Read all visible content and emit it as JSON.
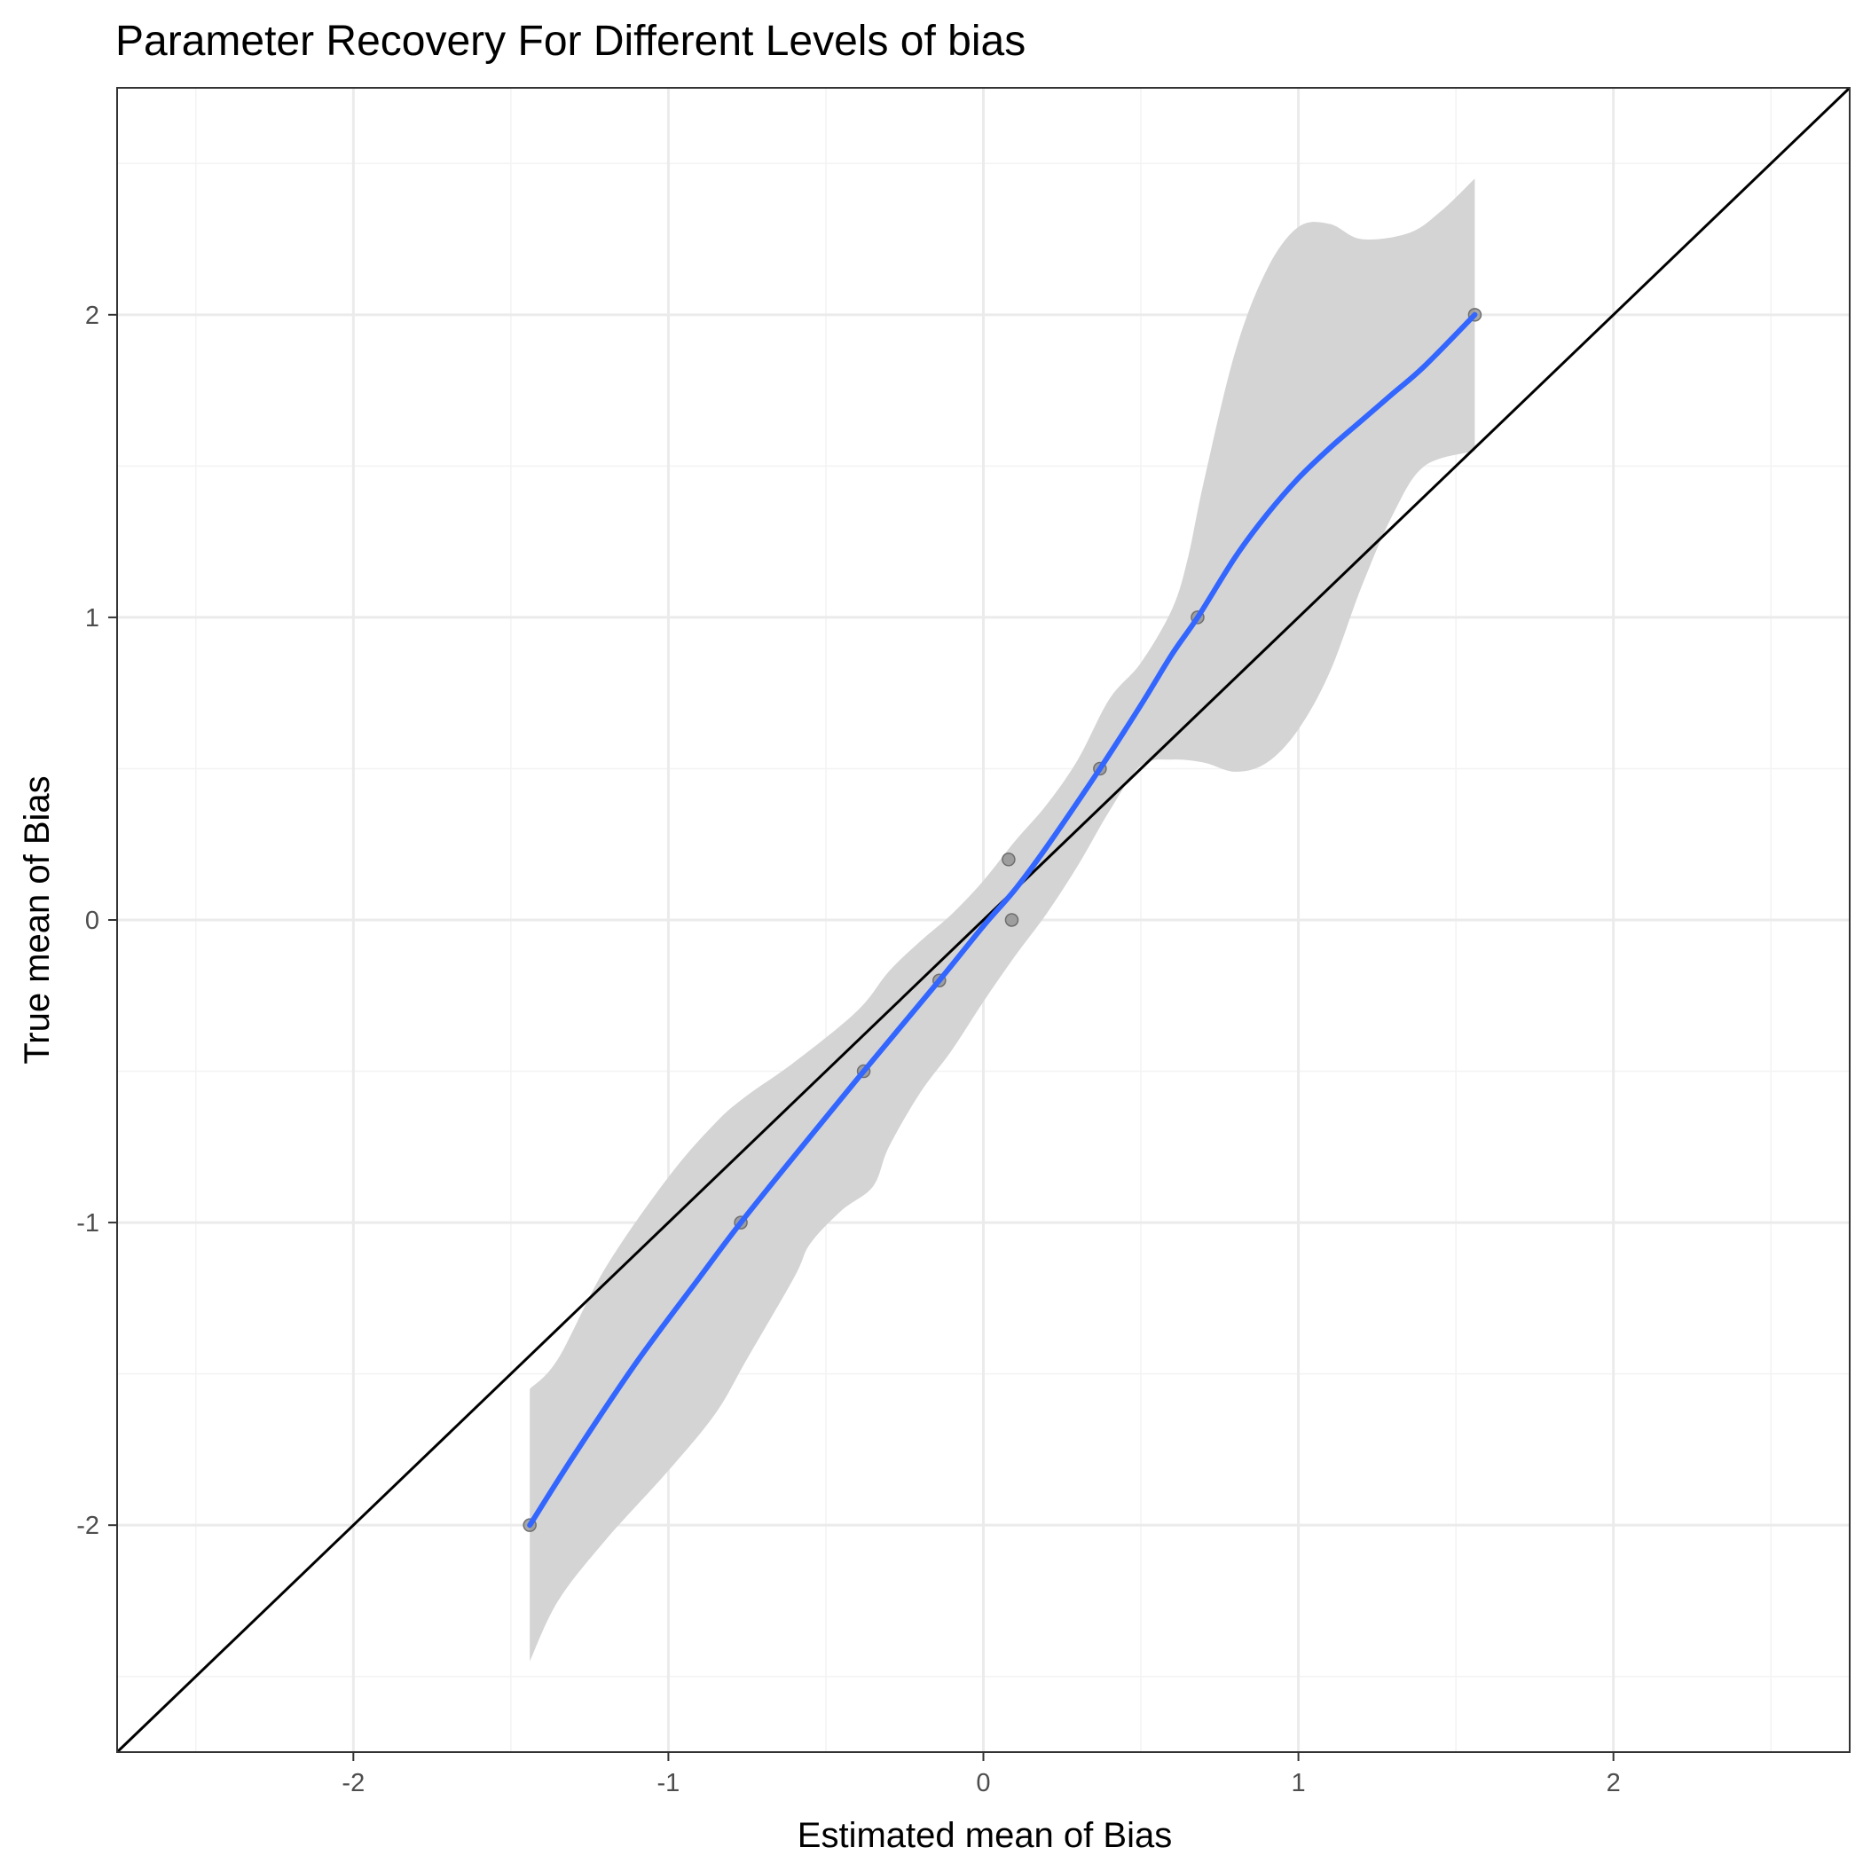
{
  "chart_data": {
    "type": "scatter",
    "title": "Parameter Recovery For Different Levels of bias",
    "xlabel": "Estimated mean of Bias",
    "ylabel": "True mean of Bias",
    "xlim": [
      -2.75,
      2.75
    ],
    "ylim": [
      -2.75,
      2.75
    ],
    "x_ticks": [
      -2,
      -1,
      0,
      1,
      2
    ],
    "x_tick_labels": [
      "-2",
      "-1",
      "0",
      "1",
      "2"
    ],
    "y_ticks": [
      -2,
      -1,
      0,
      1,
      2
    ],
    "y_tick_labels": [
      "-2",
      "-1",
      "0",
      "1",
      "2"
    ],
    "minor_ticks": [
      -2.5,
      -1.5,
      -0.5,
      0.5,
      1.5,
      2.5
    ],
    "grid": true,
    "legend": "none",
    "colors": {
      "points": "#8c8c8c",
      "smooth_line": "#3366ff",
      "ribbon": "#d4d4d4",
      "identity_line": "#000000",
      "grid_major": "#ebebeb",
      "grid_minor": "#f3f3f3",
      "panel_border": "#333333"
    },
    "points": [
      {
        "x": -1.44,
        "y": -2.0
      },
      {
        "x": -0.77,
        "y": -1.0
      },
      {
        "x": -0.38,
        "y": -0.5
      },
      {
        "x": -0.14,
        "y": -0.2
      },
      {
        "x": 0.08,
        "y": 0.2
      },
      {
        "x": 0.09,
        "y": 0.0
      },
      {
        "x": 0.37,
        "y": 0.5
      },
      {
        "x": 0.68,
        "y": 1.0
      },
      {
        "x": 1.56,
        "y": 2.0
      }
    ],
    "smooth": {
      "method": "loess",
      "line": [
        {
          "x": -1.44,
          "y": -2.0
        },
        {
          "x": -1.3,
          "y": -1.77
        },
        {
          "x": -1.1,
          "y": -1.46
        },
        {
          "x": -0.9,
          "y": -1.18
        },
        {
          "x": -0.77,
          "y": -1.0
        },
        {
          "x": -0.6,
          "y": -0.78
        },
        {
          "x": -0.38,
          "y": -0.5
        },
        {
          "x": -0.14,
          "y": -0.2
        },
        {
          "x": 0.0,
          "y": -0.02
        },
        {
          "x": 0.1,
          "y": 0.1
        },
        {
          "x": 0.2,
          "y": 0.24
        },
        {
          "x": 0.37,
          "y": 0.5
        },
        {
          "x": 0.5,
          "y": 0.71
        },
        {
          "x": 0.6,
          "y": 0.88
        },
        {
          "x": 0.68,
          "y": 1.0
        },
        {
          "x": 0.8,
          "y": 1.2
        },
        {
          "x": 0.9,
          "y": 1.34
        },
        {
          "x": 1.0,
          "y": 1.46
        },
        {
          "x": 1.1,
          "y": 1.56
        },
        {
          "x": 1.2,
          "y": 1.65
        },
        {
          "x": 1.3,
          "y": 1.74
        },
        {
          "x": 1.4,
          "y": 1.83
        },
        {
          "x": 1.56,
          "y": 2.0
        }
      ],
      "upper": [
        {
          "x": -1.44,
          "y": -1.55
        },
        {
          "x": -1.35,
          "y": -1.45
        },
        {
          "x": -1.2,
          "y": -1.15
        },
        {
          "x": -1.0,
          "y": -0.85
        },
        {
          "x": -0.85,
          "y": -0.67
        },
        {
          "x": -0.75,
          "y": -0.58
        },
        {
          "x": -0.6,
          "y": -0.47
        },
        {
          "x": -0.4,
          "y": -0.3
        },
        {
          "x": -0.3,
          "y": -0.17
        },
        {
          "x": -0.2,
          "y": -0.07
        },
        {
          "x": -0.1,
          "y": 0.02
        },
        {
          "x": 0.0,
          "y": 0.13
        },
        {
          "x": 0.1,
          "y": 0.26
        },
        {
          "x": 0.2,
          "y": 0.38
        },
        {
          "x": 0.3,
          "y": 0.53
        },
        {
          "x": 0.4,
          "y": 0.73
        },
        {
          "x": 0.5,
          "y": 0.85
        },
        {
          "x": 0.6,
          "y": 1.03
        },
        {
          "x": 0.65,
          "y": 1.2
        },
        {
          "x": 0.7,
          "y": 1.45
        },
        {
          "x": 0.8,
          "y": 1.88
        },
        {
          "x": 0.9,
          "y": 2.15
        },
        {
          "x": 1.0,
          "y": 2.29
        },
        {
          "x": 1.1,
          "y": 2.3
        },
        {
          "x": 1.2,
          "y": 2.25
        },
        {
          "x": 1.35,
          "y": 2.27
        },
        {
          "x": 1.45,
          "y": 2.34
        },
        {
          "x": 1.56,
          "y": 2.45
        }
      ],
      "lower": [
        {
          "x": -1.44,
          "y": -2.45
        },
        {
          "x": -1.35,
          "y": -2.25
        },
        {
          "x": -1.2,
          "y": -2.05
        },
        {
          "x": -1.0,
          "y": -1.82
        },
        {
          "x": -0.85,
          "y": -1.63
        },
        {
          "x": -0.75,
          "y": -1.45
        },
        {
          "x": -0.6,
          "y": -1.18
        },
        {
          "x": -0.55,
          "y": -1.07
        },
        {
          "x": -0.45,
          "y": -0.96
        },
        {
          "x": -0.35,
          "y": -0.88
        },
        {
          "x": -0.3,
          "y": -0.75
        },
        {
          "x": -0.2,
          "y": -0.57
        },
        {
          "x": -0.1,
          "y": -0.43
        },
        {
          "x": 0.0,
          "y": -0.27
        },
        {
          "x": 0.1,
          "y": -0.12
        },
        {
          "x": 0.2,
          "y": 0.02
        },
        {
          "x": 0.3,
          "y": 0.18
        },
        {
          "x": 0.4,
          "y": 0.36
        },
        {
          "x": 0.5,
          "y": 0.51
        },
        {
          "x": 0.6,
          "y": 0.53
        },
        {
          "x": 0.7,
          "y": 0.52
        },
        {
          "x": 0.8,
          "y": 0.49
        },
        {
          "x": 0.9,
          "y": 0.52
        },
        {
          "x": 1.0,
          "y": 0.63
        },
        {
          "x": 1.1,
          "y": 0.82
        },
        {
          "x": 1.2,
          "y": 1.1
        },
        {
          "x": 1.3,
          "y": 1.34
        },
        {
          "x": 1.4,
          "y": 1.5
        },
        {
          "x": 1.56,
          "y": 1.55
        }
      ]
    },
    "reference_line": {
      "slope": 1,
      "intercept": 0
    }
  }
}
